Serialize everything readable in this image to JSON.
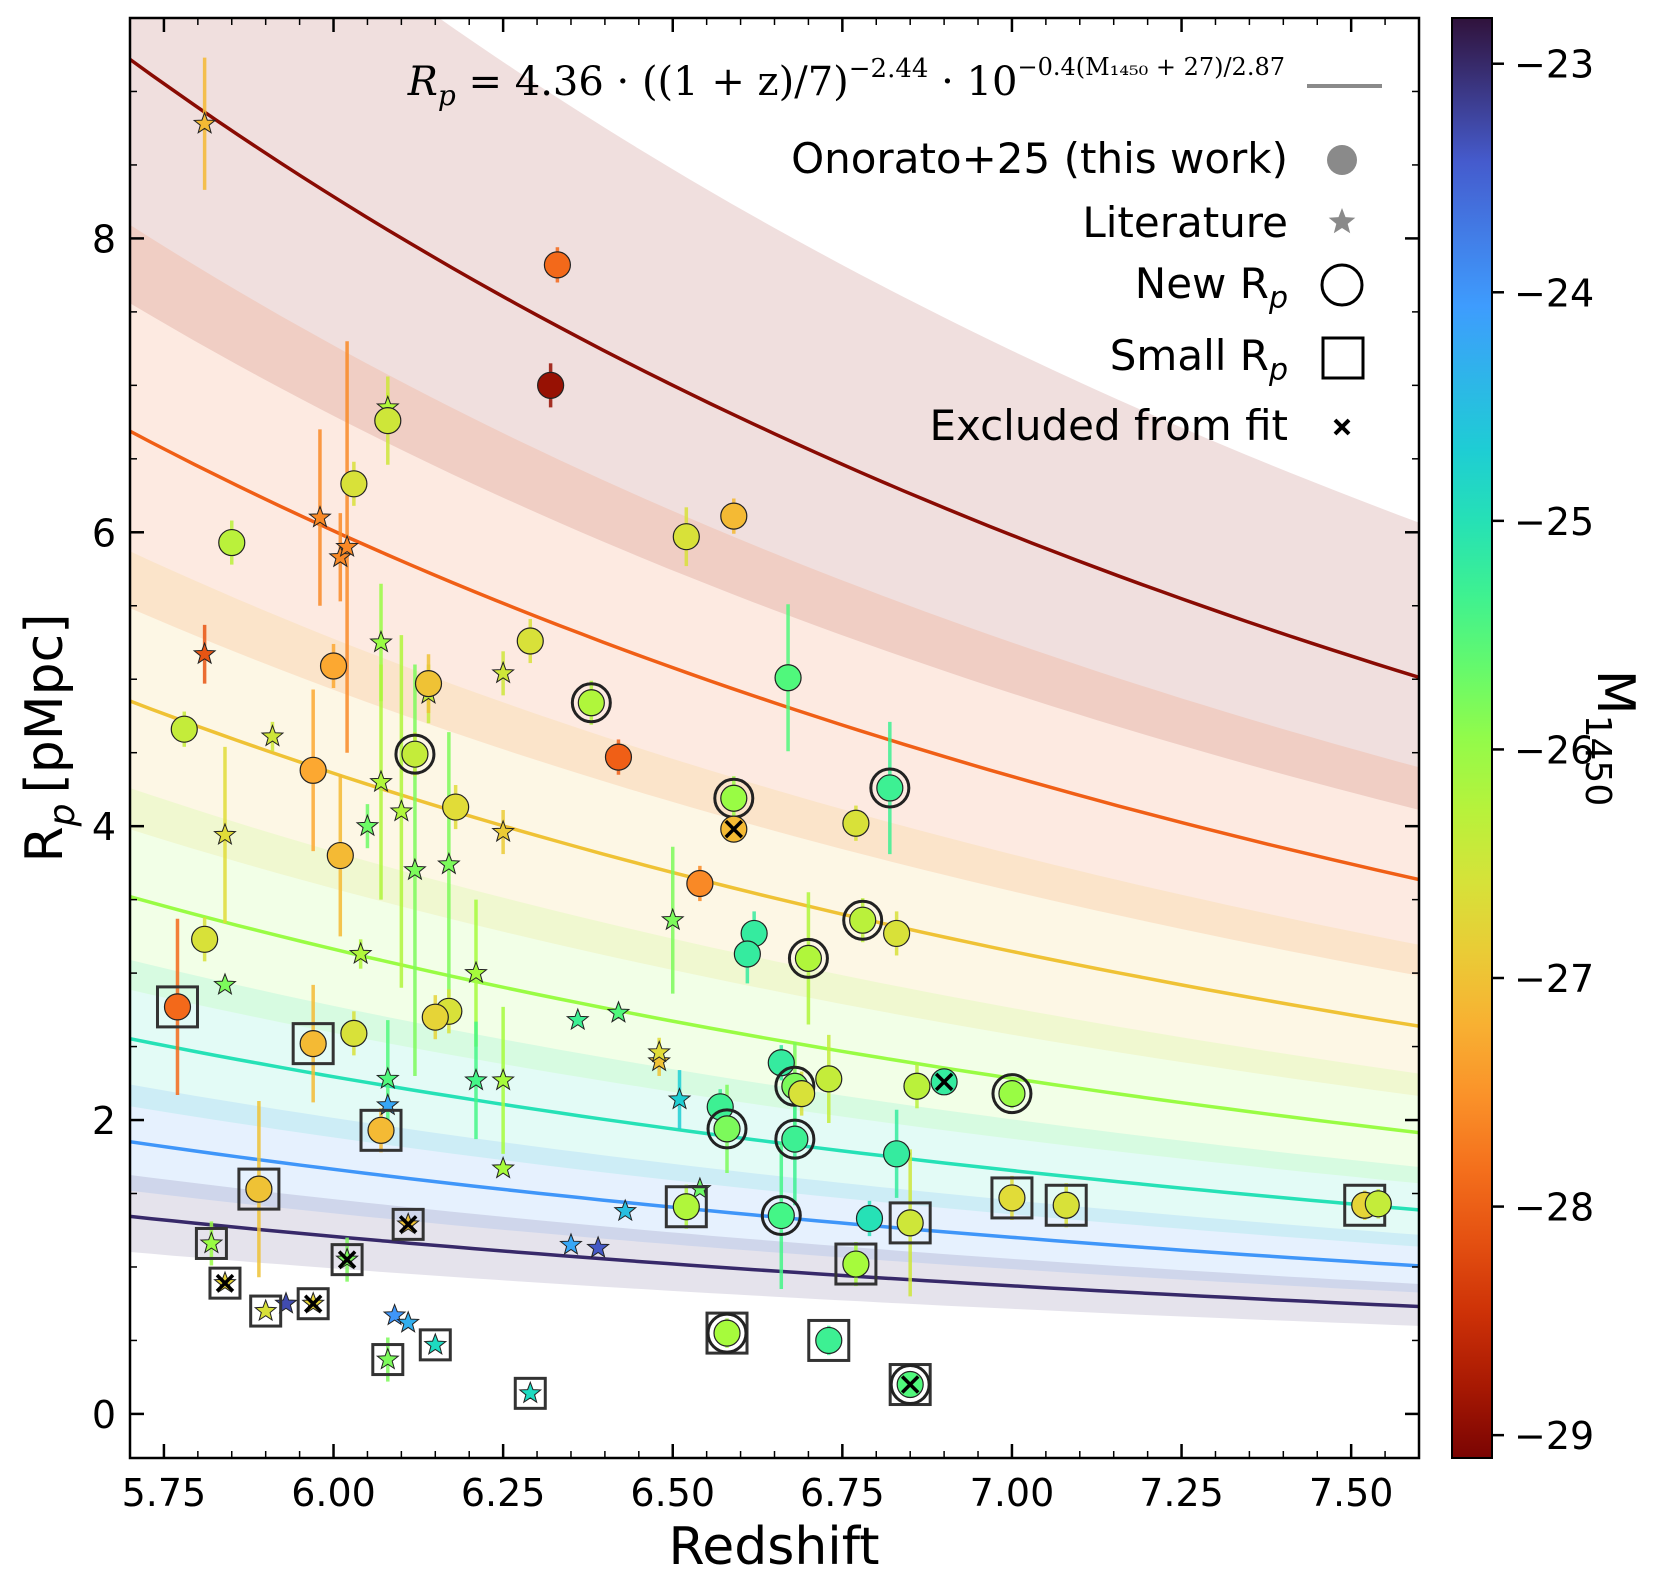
{
  "chart_data": {
    "type": "scatter",
    "title": "",
    "xlabel": "Redshift",
    "ylabel": "R",
    "ylabel_sub": "p",
    "ylabel_unit": "[pMpc]",
    "xlim": [
      5.7,
      7.6
    ],
    "ylim": [
      -0.3,
      9.5
    ],
    "xticks": [
      5.75,
      6.0,
      6.25,
      6.5,
      6.75,
      7.0,
      7.25,
      7.5
    ],
    "xtick_labels": [
      "5.75",
      "6.00",
      "6.25",
      "6.50",
      "6.75",
      "7.00",
      "7.25",
      "7.50"
    ],
    "yticks": [
      0,
      2,
      4,
      6,
      8
    ],
    "ytick_labels": [
      "0",
      "2",
      "4",
      "6",
      "8"
    ],
    "grid": false,
    "colorbar": {
      "label": "M",
      "label_sub": "1450",
      "range": [
        -29.1,
        -22.8
      ],
      "ticks": [
        -23,
        -24,
        -25,
        -26,
        -27,
        -28,
        -29
      ],
      "tick_labels": [
        "−23",
        "−24",
        "−25",
        "−26",
        "−27",
        "−28",
        "−29"
      ],
      "colormap": "turbo"
    },
    "fit": {
      "formula": "R_p = 4.36 · ((1+z)/7)^-2.44 · 10^(-0.4(M1450+27)/2.87)",
      "r0": 4.36,
      "z_pivot": 6.0,
      "alpha": -2.44,
      "m_pivot": -27,
      "beta": 2.87,
      "band_half_width": 0.6,
      "curves_m1450": [
        -29,
        -28,
        -27,
        -26,
        -25,
        -24,
        -23
      ]
    },
    "legend": {
      "position": "top-right",
      "formula_label": "R",
      "formula_sub": "p",
      "formula_eq": " = 4.36 · ((1 + z)/7)",
      "formula_exp1": "−2.44",
      "formula_mid": " · 10",
      "formula_exp2": "−0.4(M₁₄₅₀ + 27)/2.87",
      "entries": [
        {
          "label": "Onorato+25 (this work)",
          "marker": "circle"
        },
        {
          "label": "Literature",
          "marker": "star"
        },
        {
          "label": "New R",
          "label_sub": "p",
          "marker": "ring"
        },
        {
          "label": "Small R",
          "label_sub": "p",
          "marker": "square"
        },
        {
          "label": "Excluded from fit",
          "marker": "x"
        }
      ]
    },
    "points": [
      {
        "z": 5.81,
        "rp": 8.78,
        "m": -27.1,
        "err": 0.45,
        "marker": "star"
      },
      {
        "z": 5.81,
        "rp": 5.17,
        "m": -28.1,
        "err": 0.2,
        "marker": "star"
      },
      {
        "z": 5.84,
        "rp": 3.94,
        "m": -26.7,
        "err": 0.6,
        "marker": "star"
      },
      {
        "z": 5.84,
        "rp": 2.92,
        "m": -25.8,
        "err": 0.0,
        "marker": "star"
      },
      {
        "z": 5.91,
        "rp": 4.61,
        "m": -26.5,
        "err": 0.1,
        "marker": "star"
      },
      {
        "z": 5.98,
        "rp": 6.1,
        "m": -27.6,
        "err": 0.6,
        "marker": "star"
      },
      {
        "z": 6.01,
        "rp": 5.83,
        "m": -27.6,
        "err": 0.3,
        "marker": "star"
      },
      {
        "z": 6.02,
        "rp": 5.9,
        "m": -27.6,
        "err": 1.4,
        "marker": "star"
      },
      {
        "z": 6.04,
        "rp": 3.13,
        "m": -26.2,
        "err": 0.1,
        "marker": "star"
      },
      {
        "z": 6.05,
        "rp": 4.0,
        "m": -25.7,
        "err": 0.15,
        "marker": "star"
      },
      {
        "z": 6.07,
        "rp": 5.25,
        "m": -26.0,
        "err": 0.4,
        "marker": "star"
      },
      {
        "z": 6.07,
        "rp": 4.3,
        "m": -26.2,
        "err": 0.8,
        "marker": "star"
      },
      {
        "z": 6.08,
        "rp": 6.85,
        "m": -26.2,
        "err": 0.1,
        "marker": "star"
      },
      {
        "z": 6.08,
        "rp": 2.28,
        "m": -25.5,
        "err": 0.4,
        "marker": "star"
      },
      {
        "z": 6.08,
        "rp": 2.1,
        "m": -24.2,
        "err": 0.0,
        "marker": "star"
      },
      {
        "z": 6.1,
        "rp": 4.1,
        "m": -26.2,
        "err": 1.2,
        "marker": "star"
      },
      {
        "z": 6.12,
        "rp": 3.7,
        "m": -25.8,
        "err": 1.4,
        "marker": "star"
      },
      {
        "z": 6.14,
        "rp": 4.9,
        "m": -26.4,
        "err": 0.2,
        "marker": "star"
      },
      {
        "z": 6.17,
        "rp": 3.74,
        "m": -25.8,
        "err": 0.9,
        "marker": "star"
      },
      {
        "z": 6.21,
        "rp": 3.0,
        "m": -26.1,
        "err": 0.5,
        "marker": "star"
      },
      {
        "z": 6.21,
        "rp": 2.27,
        "m": -25.4,
        "err": 0.4,
        "marker": "star"
      },
      {
        "z": 6.25,
        "rp": 5.04,
        "m": -26.5,
        "err": 0.15,
        "marker": "star"
      },
      {
        "z": 6.25,
        "rp": 3.96,
        "m": -26.9,
        "err": 0.15,
        "marker": "star"
      },
      {
        "z": 6.25,
        "rp": 2.27,
        "m": -26.1,
        "err": 0.5,
        "marker": "star"
      },
      {
        "z": 6.25,
        "rp": 1.67,
        "m": -26.1,
        "err": 0.0,
        "marker": "star"
      },
      {
        "z": 6.36,
        "rp": 2.68,
        "m": -25.3,
        "err": 0.0,
        "marker": "star"
      },
      {
        "z": 6.42,
        "rp": 2.73,
        "m": -25.5,
        "err": 0.0,
        "marker": "star"
      },
      {
        "z": 6.48,
        "rp": 2.4,
        "m": -27.0,
        "err": 0.1,
        "marker": "star"
      },
      {
        "z": 6.48,
        "rp": 2.46,
        "m": -26.7,
        "err": 0.1,
        "marker": "star"
      },
      {
        "z": 6.5,
        "rp": 3.36,
        "m": -25.8,
        "err": 0.5,
        "marker": "star"
      },
      {
        "z": 6.51,
        "rp": 2.14,
        "m": -24.7,
        "err": 0.2,
        "marker": "star"
      },
      {
        "z": 6.54,
        "rp": 1.53,
        "m": -25.7,
        "err": 0.0,
        "marker": "star"
      },
      {
        "z": 6.35,
        "rp": 1.15,
        "m": -24.2,
        "err": 0.0,
        "marker": "star"
      },
      {
        "z": 6.39,
        "rp": 1.13,
        "m": -23.4,
        "err": 0.0,
        "marker": "star"
      },
      {
        "z": 6.43,
        "rp": 1.38,
        "m": -24.5,
        "err": 0.0,
        "marker": "star"
      },
      {
        "z": 6.09,
        "rp": 0.67,
        "m": -24.0,
        "err": 0.0,
        "marker": "star"
      },
      {
        "z": 6.11,
        "rp": 0.62,
        "m": -24.3,
        "err": 0.0,
        "marker": "star"
      },
      {
        "z": 5.93,
        "rp": 0.75,
        "m": -23.3,
        "err": 0.0,
        "marker": "star"
      },
      {
        "z": 5.82,
        "rp": 1.16,
        "m": -26.0,
        "err": 0.15,
        "marker": "star",
        "small": true
      },
      {
        "z": 5.9,
        "rp": 0.7,
        "m": -26.6,
        "err": 0.0,
        "marker": "star",
        "small": true
      },
      {
        "z": 5.97,
        "rp": 0.75,
        "m": -26.8,
        "err": 0.0,
        "marker": "star",
        "small": true,
        "excluded": true
      },
      {
        "z": 6.08,
        "rp": 0.37,
        "m": -25.8,
        "err": 0.15,
        "marker": "star",
        "small": true
      },
      {
        "z": 6.15,
        "rp": 0.47,
        "m": -24.9,
        "err": 0.0,
        "marker": "star",
        "small": true
      },
      {
        "z": 6.29,
        "rp": 0.14,
        "m": -24.9,
        "err": 0.0,
        "marker": "star",
        "small": true
      },
      {
        "z": 5.84,
        "rp": 0.89,
        "m": -26.8,
        "err": 0.0,
        "marker": "star",
        "small": true,
        "excluded": true
      },
      {
        "z": 6.02,
        "rp": 1.05,
        "m": -25.8,
        "err": 0.15,
        "marker": "star",
        "small": true,
        "excluded": true
      },
      {
        "z": 6.11,
        "rp": 1.29,
        "m": -27.0,
        "err": 0.0,
        "marker": "star",
        "small": true,
        "excluded": true
      },
      {
        "z": 6.33,
        "rp": 7.82,
        "m": -27.9,
        "err": 0.12,
        "marker": "circle"
      },
      {
        "z": 6.32,
        "rp": 7.0,
        "m": -28.9,
        "err": 0.15,
        "marker": "circle"
      },
      {
        "z": 6.08,
        "rp": 6.76,
        "m": -26.5,
        "err": 0.3,
        "marker": "circle"
      },
      {
        "z": 6.03,
        "rp": 6.33,
        "m": -26.6,
        "err": 0.15,
        "marker": "circle"
      },
      {
        "z": 5.85,
        "rp": 5.93,
        "m": -26.3,
        "err": 0.15,
        "marker": "circle"
      },
      {
        "z": 6.52,
        "rp": 5.97,
        "m": -26.6,
        "err": 0.2,
        "marker": "circle"
      },
      {
        "z": 6.59,
        "rp": 6.11,
        "m": -27.1,
        "err": 0.12,
        "marker": "circle"
      },
      {
        "z": 6.29,
        "rp": 5.26,
        "m": -26.6,
        "err": 0.15,
        "marker": "circle"
      },
      {
        "z": 6.0,
        "rp": 5.09,
        "m": -27.3,
        "err": 0.15,
        "marker": "circle"
      },
      {
        "z": 6.14,
        "rp": 4.97,
        "m": -27.0,
        "err": 0.2,
        "marker": "circle"
      },
      {
        "z": 5.78,
        "rp": 4.66,
        "m": -26.4,
        "err": 0.12,
        "marker": "circle"
      },
      {
        "z": 6.38,
        "rp": 4.84,
        "m": -26.2,
        "err": 0.15,
        "marker": "circle",
        "new": true
      },
      {
        "z": 6.12,
        "rp": 4.49,
        "m": -26.4,
        "err": 0.15,
        "marker": "circle",
        "new": true
      },
      {
        "z": 6.42,
        "rp": 4.47,
        "m": -28.0,
        "err": 0.12,
        "marker": "circle"
      },
      {
        "z": 5.97,
        "rp": 4.38,
        "m": -27.3,
        "err": 0.55,
        "marker": "circle"
      },
      {
        "z": 6.18,
        "rp": 4.13,
        "m": -26.7,
        "err": 0.15,
        "marker": "circle"
      },
      {
        "z": 6.67,
        "rp": 5.01,
        "m": -25.5,
        "err": 0.5,
        "marker": "circle"
      },
      {
        "z": 6.59,
        "rp": 4.19,
        "m": -26.0,
        "err": 0.15,
        "marker": "circle",
        "new": true
      },
      {
        "z": 6.82,
        "rp": 4.26,
        "m": -25.3,
        "err": 0.45,
        "marker": "circle",
        "new": true
      },
      {
        "z": 6.59,
        "rp": 3.98,
        "m": -27.1,
        "err": 0.05,
        "marker": "circle",
        "excluded": true
      },
      {
        "z": 6.77,
        "rp": 4.02,
        "m": -26.6,
        "err": 0.12,
        "marker": "circle"
      },
      {
        "z": 6.01,
        "rp": 3.8,
        "m": -27.1,
        "err": 0.55,
        "marker": "circle"
      },
      {
        "z": 6.54,
        "rp": 3.61,
        "m": -27.6,
        "err": 0.12,
        "marker": "circle"
      },
      {
        "z": 5.81,
        "rp": 3.23,
        "m": -26.6,
        "err": 0.15,
        "marker": "circle"
      },
      {
        "z": 6.62,
        "rp": 3.27,
        "m": -25.2,
        "err": 0.15,
        "marker": "circle"
      },
      {
        "z": 6.61,
        "rp": 3.13,
        "m": -25.2,
        "err": 0.2,
        "marker": "circle"
      },
      {
        "z": 6.78,
        "rp": 3.36,
        "m": -26.3,
        "err": 0.15,
        "marker": "circle",
        "new": true
      },
      {
        "z": 6.83,
        "rp": 3.27,
        "m": -26.6,
        "err": 0.15,
        "marker": "circle"
      },
      {
        "z": 6.7,
        "rp": 3.1,
        "m": -26.2,
        "err": 0.45,
        "marker": "circle",
        "new": true
      },
      {
        "z": 6.17,
        "rp": 2.74,
        "m": -26.6,
        "err": 0.15,
        "marker": "circle"
      },
      {
        "z": 6.15,
        "rp": 2.7,
        "m": -26.8,
        "err": 0.15,
        "marker": "circle"
      },
      {
        "z": 6.03,
        "rp": 2.59,
        "m": -26.6,
        "err": 0.15,
        "marker": "circle"
      },
      {
        "z": 6.66,
        "rp": 2.39,
        "m": -25.2,
        "err": 0.12,
        "marker": "circle"
      },
      {
        "z": 6.73,
        "rp": 2.28,
        "m": -26.4,
        "err": 0.3,
        "marker": "circle"
      },
      {
        "z": 6.68,
        "rp": 2.23,
        "m": -25.8,
        "err": 0.3,
        "marker": "circle",
        "new": true
      },
      {
        "z": 6.69,
        "rp": 2.18,
        "m": -26.6,
        "err": 0.15,
        "marker": "circle"
      },
      {
        "z": 6.86,
        "rp": 2.23,
        "m": -26.3,
        "err": 0.15,
        "marker": "circle"
      },
      {
        "z": 6.9,
        "rp": 2.26,
        "m": -25.2,
        "err": 0.05,
        "marker": "circle",
        "excluded": true
      },
      {
        "z": 7.0,
        "rp": 2.18,
        "m": -26.0,
        "err": 0.1,
        "marker": "circle",
        "new": true
      },
      {
        "z": 6.57,
        "rp": 2.09,
        "m": -25.3,
        "err": 0.12,
        "marker": "circle"
      },
      {
        "z": 6.58,
        "rp": 1.94,
        "m": -25.8,
        "err": 0.3,
        "marker": "circle",
        "new": true
      },
      {
        "z": 6.68,
        "rp": 1.87,
        "m": -25.3,
        "err": 0.45,
        "marker": "circle",
        "new": true
      },
      {
        "z": 6.83,
        "rp": 1.77,
        "m": -25.2,
        "err": 0.3,
        "marker": "circle"
      },
      {
        "z": 6.66,
        "rp": 1.35,
        "m": -25.4,
        "err": 0.5,
        "marker": "circle",
        "new": true
      },
      {
        "z": 6.79,
        "rp": 1.33,
        "m": -25.0,
        "err": 0.12,
        "marker": "circle"
      },
      {
        "z": 5.77,
        "rp": 2.77,
        "m": -27.9,
        "err": 0.6,
        "marker": "circle",
        "small": true
      },
      {
        "z": 5.97,
        "rp": 2.52,
        "m": -27.1,
        "err": 0.4,
        "marker": "circle",
        "small": true
      },
      {
        "z": 6.07,
        "rp": 1.93,
        "m": -27.1,
        "err": 0.15,
        "marker": "circle",
        "small": true
      },
      {
        "z": 5.89,
        "rp": 1.53,
        "m": -27.0,
        "err": 0.6,
        "marker": "circle",
        "small": true
      },
      {
        "z": 6.52,
        "rp": 1.41,
        "m": -26.2,
        "err": 0.15,
        "marker": "circle",
        "small": true
      },
      {
        "z": 6.85,
        "rp": 1.3,
        "m": -26.5,
        "err": 0.5,
        "marker": "circle",
        "small": true
      },
      {
        "z": 7.0,
        "rp": 1.47,
        "m": -26.7,
        "err": 0.15,
        "marker": "circle",
        "small": true
      },
      {
        "z": 7.08,
        "rp": 1.42,
        "m": -26.6,
        "err": 0.15,
        "marker": "circle",
        "small": true
      },
      {
        "z": 7.52,
        "rp": 1.42,
        "m": -26.8,
        "err": 0.1,
        "marker": "circle",
        "small": true
      },
      {
        "z": 7.54,
        "rp": 1.43,
        "m": -26.4,
        "err": 0.1,
        "marker": "circle"
      },
      {
        "z": 6.77,
        "rp": 1.02,
        "m": -26.1,
        "err": 0.15,
        "marker": "circle",
        "small": true
      },
      {
        "z": 6.58,
        "rp": 0.55,
        "m": -26.1,
        "err": 0.1,
        "marker": "circle",
        "small": true,
        "new": true
      },
      {
        "z": 6.73,
        "rp": 0.5,
        "m": -25.3,
        "err": 0.1,
        "marker": "circle",
        "small": true
      },
      {
        "z": 6.85,
        "rp": 0.2,
        "m": -25.5,
        "err": 0.05,
        "marker": "circle",
        "small": true,
        "new": true,
        "excluded": true
      }
    ]
  }
}
